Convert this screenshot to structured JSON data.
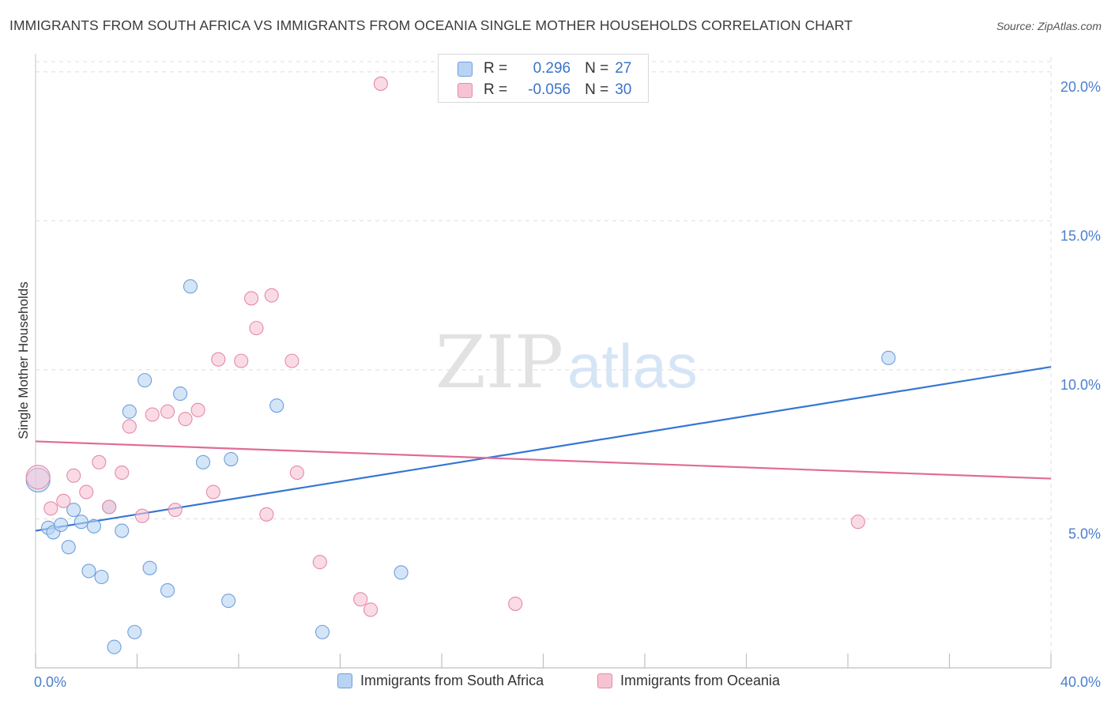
{
  "title": "IMMIGRANTS FROM SOUTH AFRICA VS IMMIGRANTS FROM OCEANIA SINGLE MOTHER HOUSEHOLDS CORRELATION CHART",
  "source": "Source: ZipAtlas.com",
  "watermark": {
    "zip": "ZIP",
    "atlas": "atlas"
  },
  "legend": {
    "rows": [
      {
        "r_label": "R =",
        "r_value": "0.296",
        "n_label": "N =",
        "n_value": "27"
      },
      {
        "r_label": "R =",
        "r_value": "-0.056",
        "n_label": "N =",
        "n_value": "30"
      }
    ]
  },
  "colors": {
    "blue_fill": "#b8d3f4",
    "blue_stroke": "#6f9fdc",
    "blue_line": "#3576d4",
    "pink_fill": "#f7c3d3",
    "pink_stroke": "#e48aa8",
    "pink_line": "#e06c96",
    "tick_label": "#4a7fce",
    "grid": "#dddddd"
  },
  "chart_data": {
    "type": "scatter",
    "title": "IMMIGRANTS FROM SOUTH AFRICA VS IMMIGRANTS FROM OCEANIA SINGLE MOTHER HOUSEHOLDS CORRELATION CHART",
    "xlabel": "",
    "ylabel": "Single Mother Households",
    "xlim": [
      0,
      40
    ],
    "ylim": [
      0,
      20.5
    ],
    "x_tick_labels": [
      "0.0%",
      "40.0%"
    ],
    "y_ticks": [
      {
        "value": 5,
        "label": "5.0%"
      },
      {
        "value": 10,
        "label": "10.0%"
      },
      {
        "value": 15,
        "label": "15.0%"
      },
      {
        "value": 20,
        "label": "20.0%"
      }
    ],
    "grid": true,
    "legend_position": "top-center",
    "series": [
      {
        "name": "Immigrants from South Africa",
        "color": "blue",
        "points": [
          [
            0.1,
            6.3
          ],
          [
            0.5,
            4.7
          ],
          [
            0.7,
            4.55
          ],
          [
            1.0,
            4.8
          ],
          [
            1.3,
            4.05
          ],
          [
            1.5,
            5.3
          ],
          [
            1.8,
            4.9
          ],
          [
            2.1,
            3.25
          ],
          [
            2.3,
            4.75
          ],
          [
            2.6,
            3.05
          ],
          [
            2.9,
            5.4
          ],
          [
            3.1,
            0.7
          ],
          [
            3.4,
            4.6
          ],
          [
            3.7,
            8.6
          ],
          [
            3.9,
            1.2
          ],
          [
            4.3,
            9.65
          ],
          [
            4.5,
            3.35
          ],
          [
            5.2,
            2.6
          ],
          [
            5.7,
            9.2
          ],
          [
            6.1,
            12.8
          ],
          [
            6.6,
            6.9
          ],
          [
            7.6,
            2.25
          ],
          [
            7.7,
            7.0
          ],
          [
            9.5,
            8.8
          ],
          [
            11.3,
            1.2
          ],
          [
            14.4,
            3.2
          ],
          [
            33.6,
            10.4
          ]
        ],
        "trend": {
          "x": [
            0,
            40
          ],
          "y": [
            4.6,
            10.1
          ]
        }
      },
      {
        "name": "Immigrants from Oceania",
        "color": "pink",
        "points": [
          [
            0.1,
            6.4
          ],
          [
            0.6,
            5.35
          ],
          [
            1.1,
            5.6
          ],
          [
            1.5,
            6.45
          ],
          [
            2.0,
            5.9
          ],
          [
            2.5,
            6.9
          ],
          [
            2.9,
            5.4
          ],
          [
            3.4,
            6.55
          ],
          [
            3.7,
            8.1
          ],
          [
            4.2,
            5.1
          ],
          [
            4.6,
            8.5
          ],
          [
            5.2,
            8.6
          ],
          [
            5.5,
            5.3
          ],
          [
            5.9,
            8.35
          ],
          [
            6.4,
            8.65
          ],
          [
            7.0,
            5.9
          ],
          [
            7.2,
            10.35
          ],
          [
            8.1,
            10.3
          ],
          [
            8.5,
            12.4
          ],
          [
            8.7,
            11.4
          ],
          [
            9.1,
            5.15
          ],
          [
            9.3,
            12.5
          ],
          [
            10.1,
            10.3
          ],
          [
            10.3,
            6.55
          ],
          [
            11.2,
            3.55
          ],
          [
            12.8,
            2.3
          ],
          [
            13.2,
            1.95
          ],
          [
            13.6,
            19.6
          ],
          [
            18.9,
            2.15
          ],
          [
            32.4,
            4.9
          ]
        ],
        "trend": {
          "x": [
            0,
            40
          ],
          "y": [
            7.6,
            6.35
          ]
        }
      }
    ]
  }
}
